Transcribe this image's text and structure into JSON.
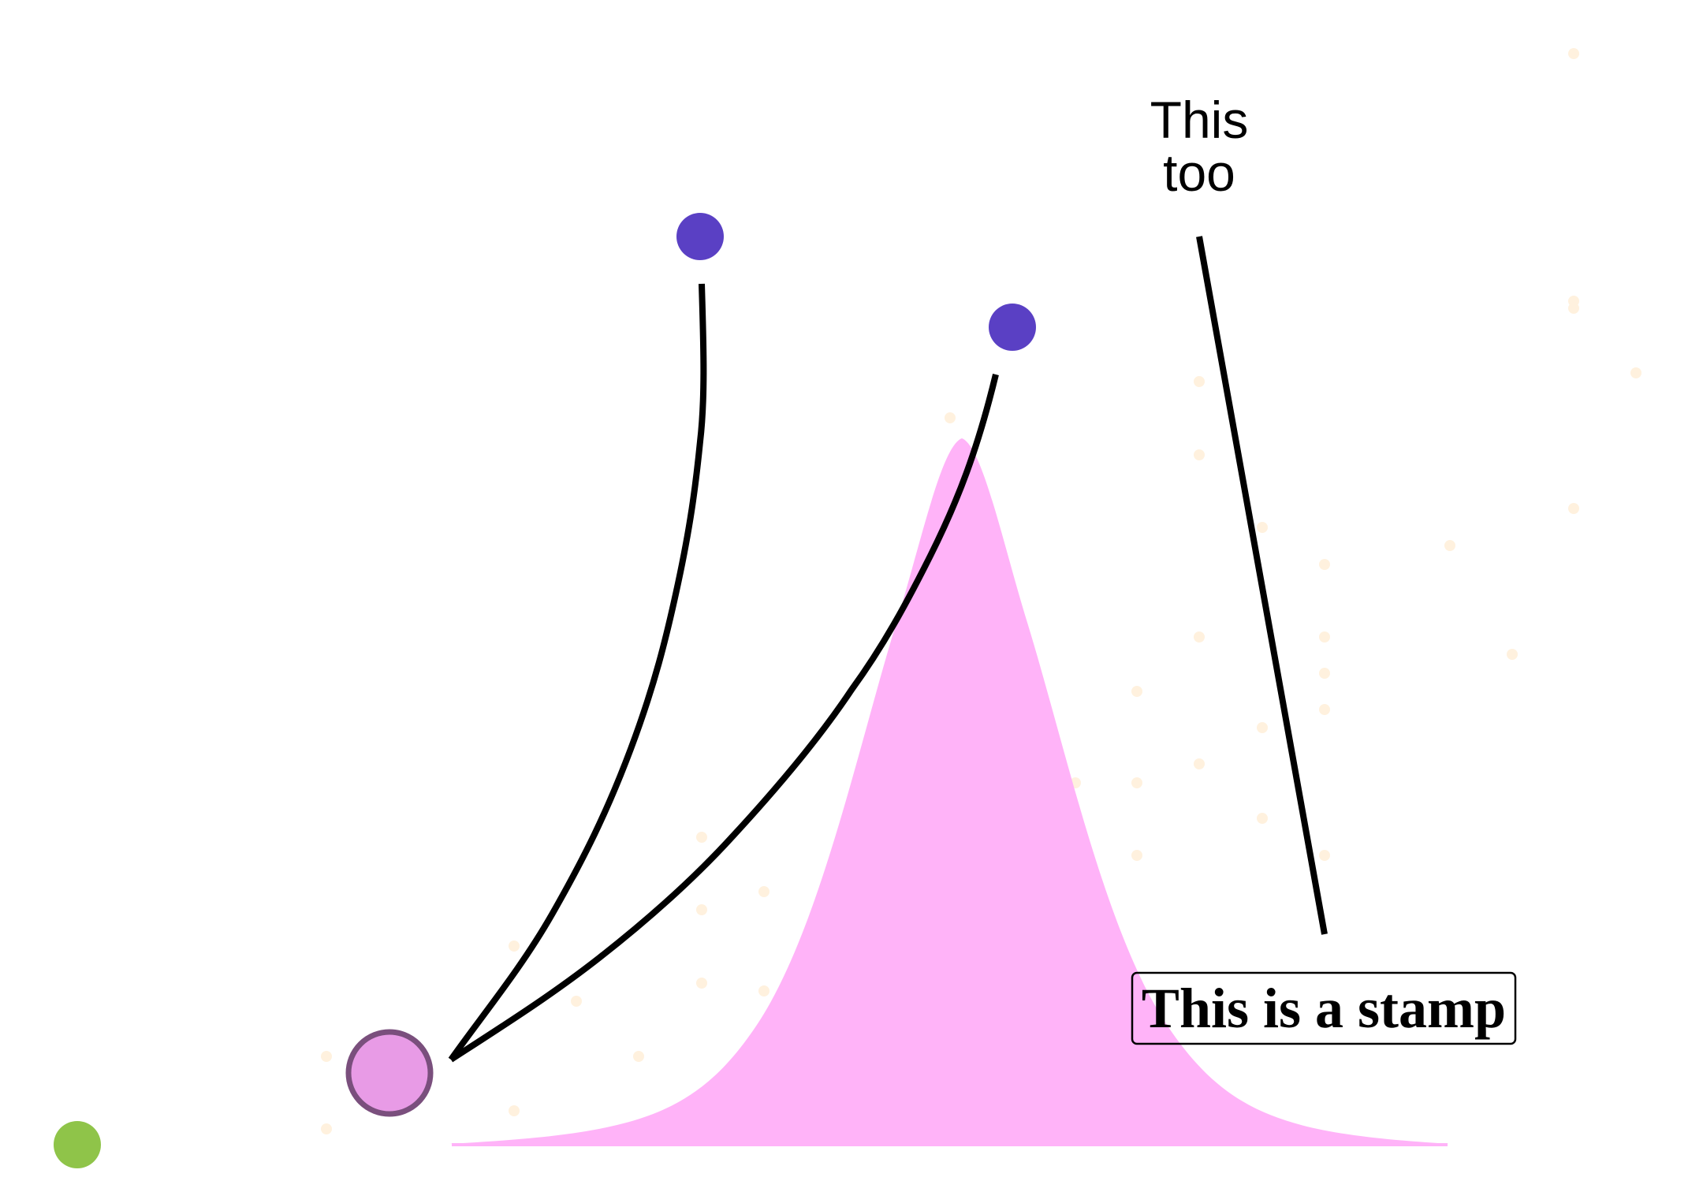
{
  "annotations": {
    "label_line_1": "This",
    "label_line_2": "too",
    "stamp": "This is a stamp"
  },
  "colors": {
    "background": "#ffffff",
    "curve_fill": "#ffb3f8",
    "scatter_points": "#fff1de",
    "blue_points": "#5a40c4",
    "pink_circle_fill": "#e89be6",
    "pink_circle_stroke": "#7a4f7d",
    "green_point": "#8fc449",
    "connector_lines": "#000000",
    "stamp_border": "#000000"
  }
}
